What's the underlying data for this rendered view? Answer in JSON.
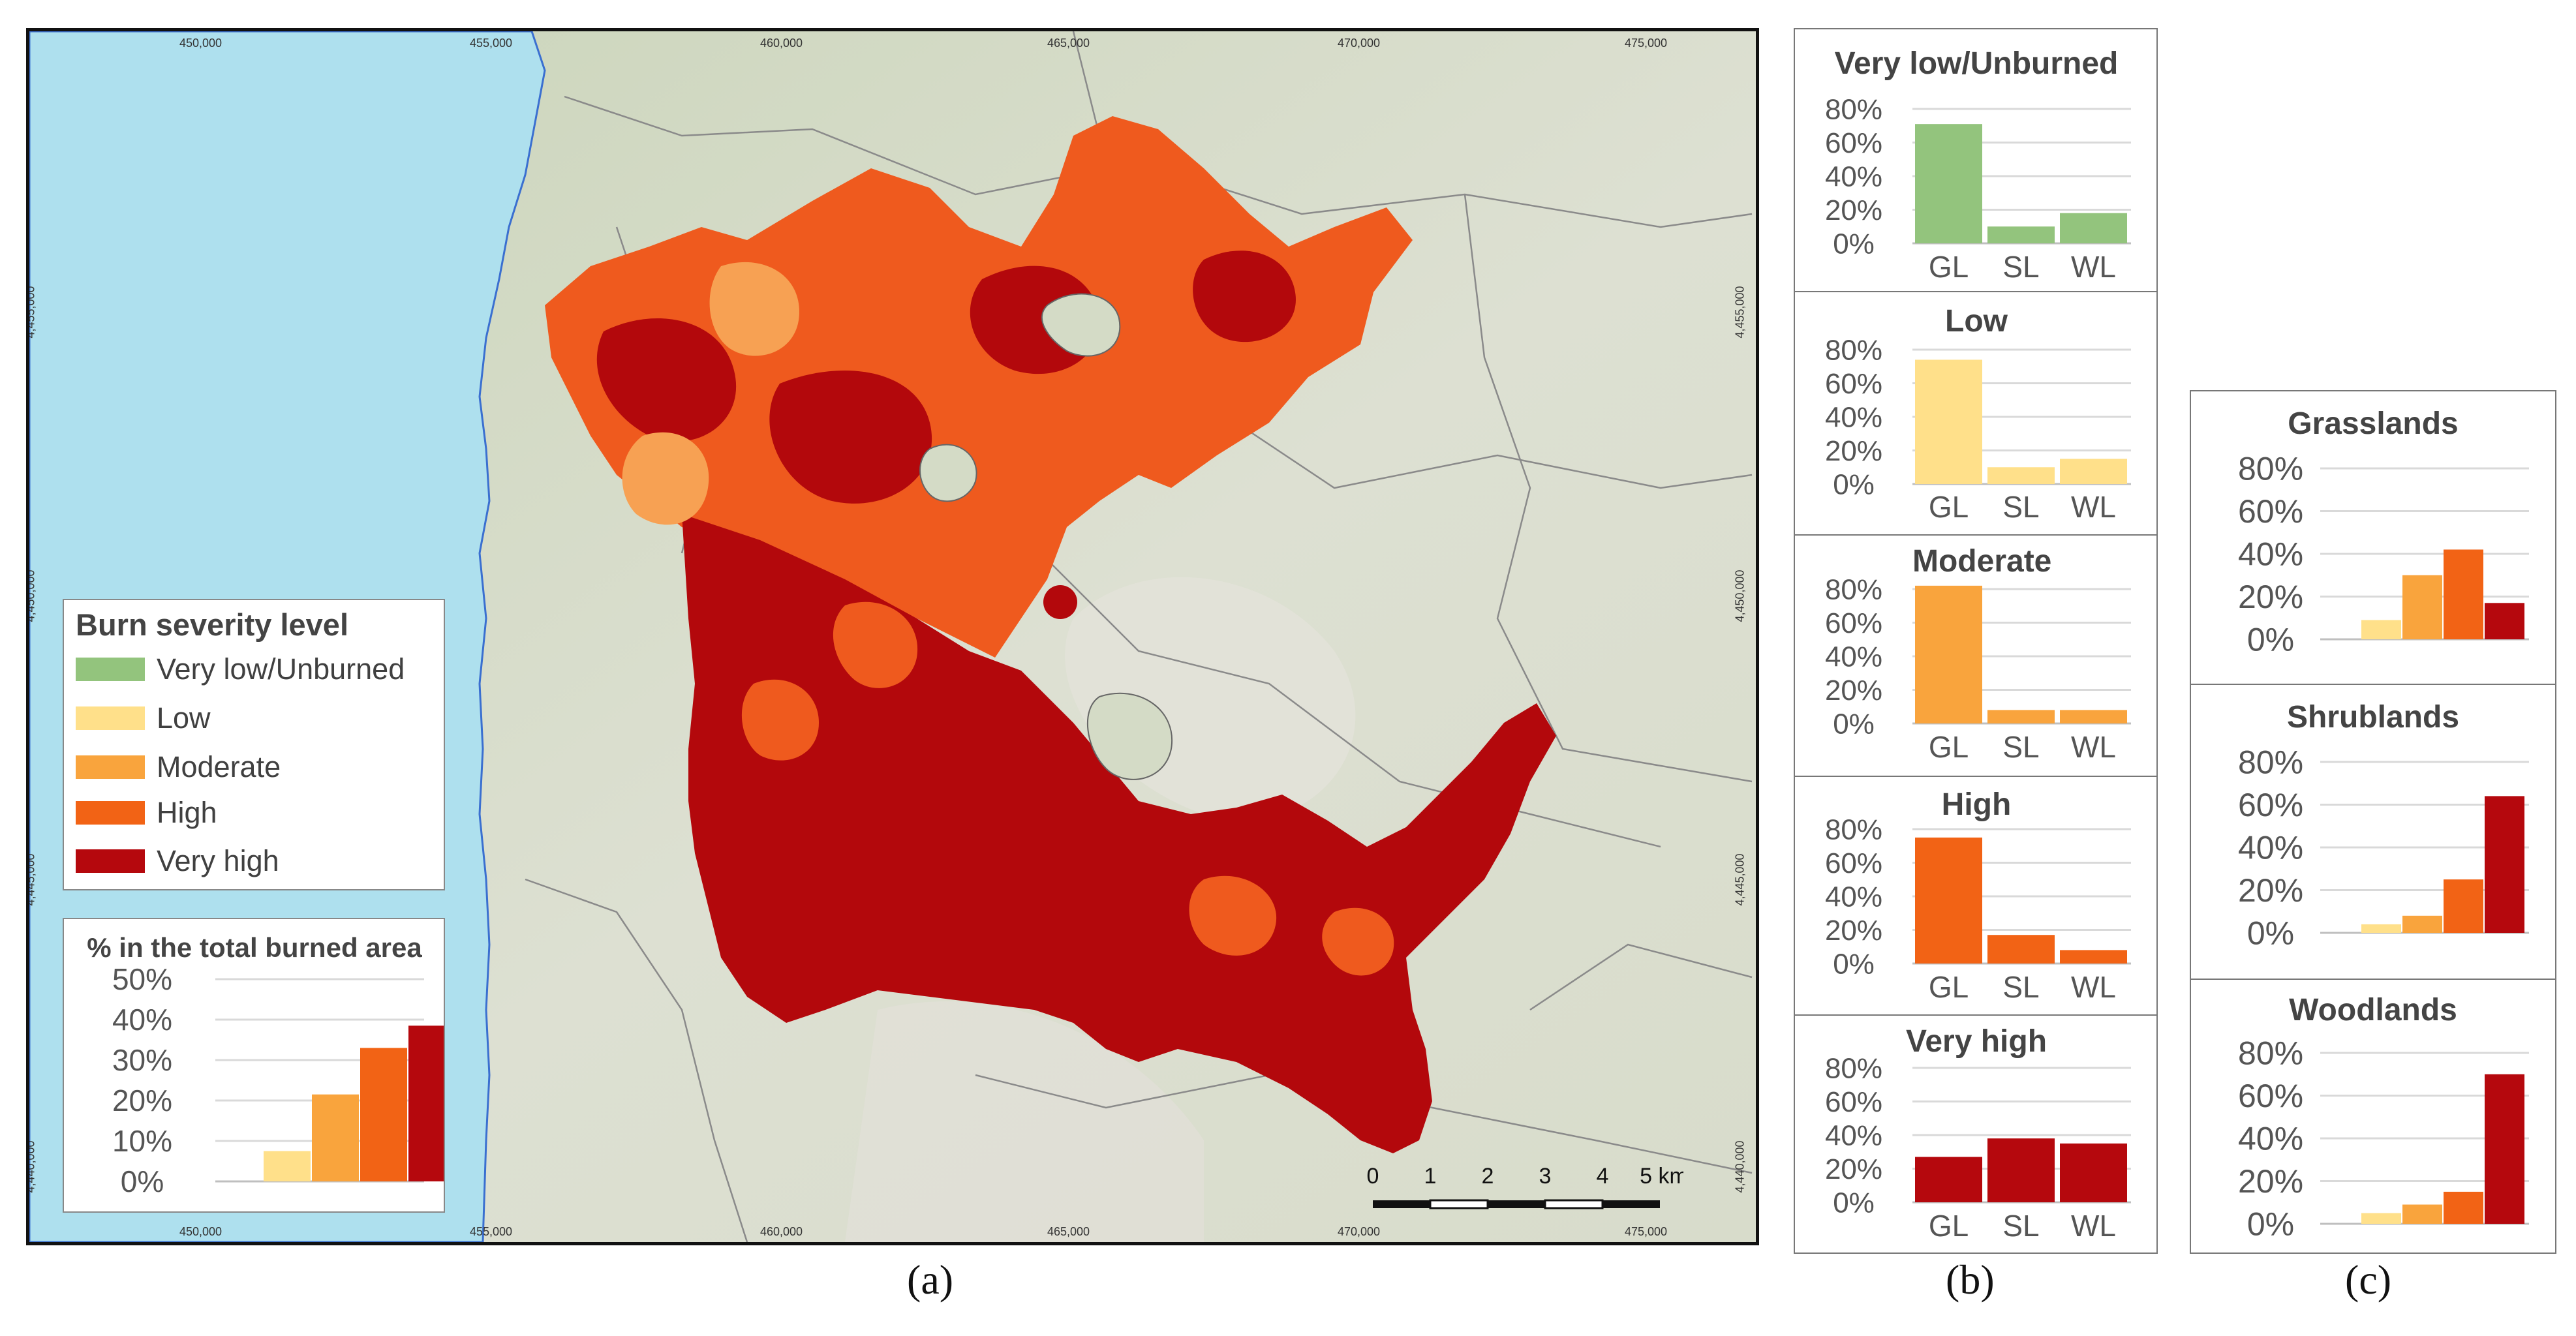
{
  "map": {
    "top_coords": [
      "450,000",
      "455,000",
      "460,000",
      "465,000",
      "470,000",
      "475,000"
    ],
    "bottom_coords": [
      "450,000",
      "455,000",
      "460,000",
      "465,000",
      "470,000",
      "475,000"
    ],
    "left_coords": [
      "4,455,000",
      "4,450,000",
      "4,445,000",
      "4,440,000"
    ],
    "right_coords": [
      "4,455,000",
      "4,450,000",
      "4,445,000",
      "4,440,000"
    ],
    "colors": {
      "sea": "#aee0ee",
      "land": "#d4dbc6",
      "burned_dark": "#b3080c",
      "burned_orange": "#ef5a1e",
      "burned_light": "#f7a153"
    },
    "scale_bar": {
      "ticks": [
        "0",
        "1",
        "2",
        "3",
        "4",
        "5 km"
      ]
    }
  },
  "legend": {
    "title": "Burn severity level",
    "items": [
      {
        "label": "Very low/Unburned",
        "color": "#93c47d"
      },
      {
        "label": "Low",
        "color": "#ffe08a"
      },
      {
        "label": "Moderate",
        "color": "#f9a43d"
      },
      {
        "label": "High",
        "color": "#f26315"
      },
      {
        "label": "Very high",
        "color": "#b5080d"
      }
    ]
  },
  "chart_data": [
    {
      "type": "bar",
      "title": "% in the total burned area",
      "categories": [
        "Very low/Unburned",
        "Low",
        "Moderate",
        "High",
        "Very high"
      ],
      "values": [
        0,
        7.5,
        21.5,
        33,
        38.5
      ],
      "colors": [
        "#93c47d",
        "#ffe08a",
        "#f9a43d",
        "#f26315",
        "#b5080d"
      ],
      "yticks": [
        "0%",
        "10%",
        "20%",
        "30%",
        "40%",
        "50%"
      ],
      "ylim": [
        0,
        50
      ]
    },
    {
      "type": "bar",
      "title": "Very low/Unburned",
      "categories": [
        "GL",
        "SL",
        "WL"
      ],
      "values": [
        71,
        10,
        18
      ],
      "color": "#93c47d",
      "yticks": [
        "0%",
        "20%",
        "40%",
        "60%",
        "80%"
      ],
      "ylim": [
        0,
        80
      ]
    },
    {
      "type": "bar",
      "title": "Low",
      "categories": [
        "GL",
        "SL",
        "WL"
      ],
      "values": [
        74,
        10,
        15
      ],
      "color": "#ffe08a",
      "yticks": [
        "0%",
        "20%",
        "40%",
        "60%",
        "80%"
      ],
      "ylim": [
        0,
        80
      ]
    },
    {
      "type": "bar",
      "title": "Moderate",
      "categories": [
        "GL",
        "SL",
        "WL"
      ],
      "values": [
        82,
        8,
        8
      ],
      "color": "#f9a43d",
      "yticks": [
        "0%",
        "20%",
        "40%",
        "60%",
        "80%"
      ],
      "ylim": [
        0,
        80
      ]
    },
    {
      "type": "bar",
      "title": "High",
      "categories": [
        "GL",
        "SL",
        "WL"
      ],
      "values": [
        75,
        17,
        8
      ],
      "color": "#f26315",
      "yticks": [
        "0%",
        "20%",
        "40%",
        "60%",
        "80%"
      ],
      "ylim": [
        0,
        80
      ]
    },
    {
      "type": "bar",
      "title": "Very high",
      "categories": [
        "GL",
        "SL",
        "WL"
      ],
      "values": [
        27,
        38,
        35
      ],
      "color": "#b5080d",
      "yticks": [
        "0%",
        "20%",
        "40%",
        "60%",
        "80%"
      ],
      "ylim": [
        0,
        80
      ]
    },
    {
      "type": "bar",
      "title": "Grasslands",
      "categories": [
        "Very low/Unburned",
        "Low",
        "Moderate",
        "High",
        "Very high"
      ],
      "values": [
        0,
        9,
        30,
        42,
        17
      ],
      "colors": [
        "#93c47d",
        "#ffe08a",
        "#f9a43d",
        "#f26315",
        "#b5080d"
      ],
      "yticks": [
        "0%",
        "20%",
        "40%",
        "60%",
        "80%"
      ],
      "ylim": [
        0,
        80
      ]
    },
    {
      "type": "bar",
      "title": "Shrublands",
      "categories": [
        "Very low/Unburned",
        "Low",
        "Moderate",
        "High",
        "Very high"
      ],
      "values": [
        0,
        4,
        8,
        25,
        64
      ],
      "colors": [
        "#93c47d",
        "#ffe08a",
        "#f9a43d",
        "#f26315",
        "#b5080d"
      ],
      "yticks": [
        "0%",
        "20%",
        "40%",
        "60%",
        "80%"
      ],
      "ylim": [
        0,
        80
      ]
    },
    {
      "type": "bar",
      "title": "Woodlands",
      "categories": [
        "Very low/Unburned",
        "Low",
        "Moderate",
        "High",
        "Very high"
      ],
      "values": [
        0,
        5,
        9,
        15,
        70
      ],
      "colors": [
        "#93c47d",
        "#ffe08a",
        "#f9a43d",
        "#f26315",
        "#b5080d"
      ],
      "yticks": [
        "0%",
        "20%",
        "40%",
        "60%",
        "80%"
      ],
      "ylim": [
        0,
        80
      ]
    }
  ],
  "captions": {
    "a": "(a)",
    "b": "(b)",
    "c": "(c)"
  }
}
